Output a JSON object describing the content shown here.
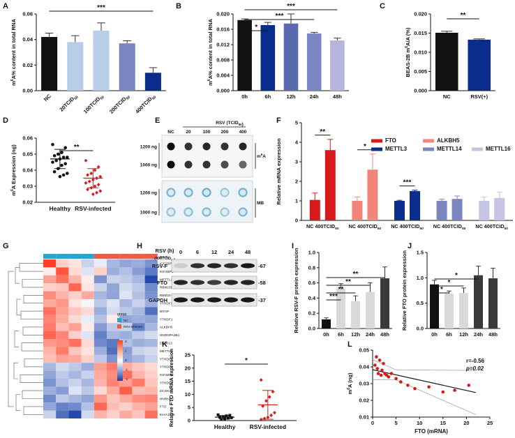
{
  "colors": {
    "black": "#111111",
    "navy": "#0a2c8c",
    "red": "#d7191c",
    "salmon": "#f28579",
    "ltblue": "#b7cde8",
    "slate": "#7a86c0",
    "lavender": "#c6c4e4"
  },
  "panels": [
    {
      "letter": "A",
      "id": "A",
      "type": "bar",
      "ylabel": "m6A% content in total RNA",
      "ylim": [
        0,
        0.06
      ],
      "yticks": [
        "0.00",
        "0.02",
        "0.04",
        "0.06"
      ],
      "categories": [
        "NC",
        "20TCID50",
        "100TCID50",
        "200TCID50",
        "400TCID50"
      ],
      "values": [
        0.042,
        0.038,
        0.047,
        0.037,
        0.014
      ],
      "errors": [
        0.003,
        0.005,
        0.006,
        0.002,
        0.004
      ],
      "colors": [
        "#111111",
        "#b7cde8",
        "#b7cde8",
        "#7a86c0",
        "#0a2c8c"
      ],
      "sig": [
        {
          "from": 0,
          "to": 4,
          "label": "***"
        }
      ]
    },
    {
      "letter": "B",
      "id": "B",
      "type": "bar",
      "ylabel": "m6A% content in total RNA",
      "ylim": [
        0,
        0.02
      ],
      "yticks": [
        "0.000",
        "0.004",
        "0.008",
        "0.012",
        "0.016",
        "0.020"
      ],
      "categories": [
        "0h",
        "6h",
        "12h",
        "24h",
        "48h"
      ],
      "values": [
        0.0184,
        0.0171,
        0.0175,
        0.0149,
        0.0131
      ],
      "errors": [
        0.0003,
        0.0007,
        0.0025,
        0.0003,
        0.0006
      ],
      "colors": [
        "#111111",
        "#0a2c8c",
        "#5b69b0",
        "#7a86c0",
        "#b7b5de"
      ],
      "sig": [
        {
          "from": 0,
          "to": 1,
          "label": "*"
        },
        {
          "from": 0,
          "to": 3,
          "label": "***"
        },
        {
          "from": 0,
          "to": 4,
          "label": "***"
        }
      ]
    },
    {
      "letter": "C",
      "id": "C",
      "type": "bar",
      "ylabel": "BEAS-2B m6A/A (%)",
      "ylim": [
        0,
        0.02
      ],
      "yticks": [
        "0.000",
        "0.005",
        "0.010",
        "0.015",
        "0.020"
      ],
      "categories": [
        "NC",
        "RSV(+)"
      ],
      "values": [
        0.0151,
        0.0133
      ],
      "errors": [
        0.0004,
        0.0002
      ],
      "colors": [
        "#111111",
        "#0a2c8c"
      ],
      "sig": [
        {
          "from": 0,
          "to": 1,
          "label": "**"
        }
      ]
    },
    {
      "letter": "D",
      "id": "D",
      "type": "scatter",
      "ylabel": "m6A Expression (ng)",
      "ylim": [
        0.02,
        0.06
      ],
      "yticks": [
        "0.02",
        "0.03",
        "0.04",
        "0.05",
        "0.06"
      ],
      "categories": [
        "Healthy",
        "RSV-infected"
      ],
      "groups": [
        {
          "values": [
            0.056,
            0.054,
            0.051,
            0.05,
            0.049,
            0.048,
            0.048,
            0.047,
            0.046,
            0.045,
            0.044,
            0.043,
            0.041,
            0.039,
            0.038,
            0.037,
            0.036
          ],
          "mean": 0.047,
          "sd": 0.006,
          "color": "#111111"
        },
        {
          "values": [
            0.046,
            0.042,
            0.04,
            0.038,
            0.037,
            0.036,
            0.035,
            0.034,
            0.033,
            0.032,
            0.031,
            0.03,
            0.029,
            0.028,
            0.027,
            0.026,
            0.025
          ],
          "mean": 0.035,
          "sd": 0.006,
          "color": "#d7191c"
        }
      ],
      "sig": [
        {
          "from": 0,
          "to": 1,
          "label": "**"
        }
      ]
    },
    {
      "letter": "F",
      "id": "F",
      "type": "grouped",
      "ylabel": "Relative mRNA expression",
      "ylim": [
        0,
        5
      ],
      "yticks": [
        "0",
        "1",
        "2",
        "3",
        "4",
        "5"
      ],
      "groups": [
        {
          "label": "NC 400TCID50",
          "values": [
            1.05,
            3.6
          ],
          "errors": [
            0.35,
            0.55
          ],
          "colors": [
            "#d7191c",
            "#d7191c"
          ],
          "sig": "**"
        },
        {
          "label": "NC 400TCID50",
          "values": [
            1.0,
            2.6
          ],
          "errors": [
            0.2,
            0.8
          ],
          "colors": [
            "#f28579",
            "#f28579"
          ],
          "sig": "*"
        },
        {
          "label": "NC 400TCID50",
          "values": [
            1.0,
            1.5
          ],
          "errors": [
            0.03,
            0.05
          ],
          "colors": [
            "#0a2c8c",
            "#0a2c8c"
          ],
          "sig": "***"
        },
        {
          "label": "NC 400TCID50",
          "values": [
            1.0,
            1.1
          ],
          "errors": [
            0.08,
            0.15
          ],
          "colors": [
            "#7a86c0",
            "#7a86c0"
          ],
          "sig": ""
        },
        {
          "label": "NC 400TCID50",
          "values": [
            1.0,
            1.15
          ],
          "errors": [
            0.2,
            0.3
          ],
          "colors": [
            "#c6c4e4",
            "#c6c4e4"
          ],
          "sig": ""
        }
      ],
      "legend": [
        {
          "name": "FTO",
          "color": "#d7191c"
        },
        {
          "name": "ALKBH5",
          "color": "#f28579"
        },
        {
          "name": "METTL3",
          "color": "#0a2c8c"
        },
        {
          "name": "METTL14",
          "color": "#7a86c0"
        },
        {
          "name": "METTL16",
          "color": "#c6c4e4"
        }
      ]
    },
    {
      "letter": "I",
      "id": "I",
      "type": "bar",
      "ylabel": "Relative RSV-F protein expression",
      "ylim": [
        0,
        1.0
      ],
      "yticks": [
        "0.0",
        "0.2",
        "0.4",
        "0.6",
        "0.8",
        "1.0"
      ],
      "categories": [
        "0h",
        "6h",
        "12h",
        "24h",
        "48h"
      ],
      "values": [
        0.12,
        0.53,
        0.36,
        0.48,
        0.66
      ],
      "errors": [
        0.02,
        0.06,
        0.07,
        0.12,
        0.15
      ],
      "colors": [
        "#111111",
        "#d9d9d9",
        "#d9d9d9",
        "#d9d9d9",
        "#3a3a3a"
      ],
      "sig": [
        {
          "from": 0,
          "to": 1,
          "label": "***"
        },
        {
          "from": 0,
          "to": 2,
          "label": "**"
        },
        {
          "from": 0,
          "to": 3,
          "label": "**"
        },
        {
          "from": 0,
          "to": 4,
          "label": "**"
        }
      ]
    },
    {
      "letter": "J",
      "id": "J",
      "type": "bar",
      "ylabel": "Relative FTO protein expression",
      "ylim": [
        0,
        1.5
      ],
      "yticks": [
        "0.0",
        "0.5",
        "1.0",
        "1.5"
      ],
      "categories": [
        "0h",
        "6h",
        "12h",
        "24h",
        "48h"
      ],
      "values": [
        0.87,
        0.69,
        0.7,
        1.05,
        0.99
      ],
      "errors": [
        0.08,
        0.05,
        0.1,
        0.18,
        0.2
      ],
      "colors": [
        "#111111",
        "#d9d9d9",
        "#d9d9d9",
        "#3a3a3a",
        "#3a3a3a"
      ],
      "sig": [
        {
          "from": 0,
          "to": 1,
          "label": "*"
        },
        {
          "from": 0,
          "to": 2,
          "label": "*"
        },
        {
          "from": 0,
          "to": 3,
          "label": "*"
        }
      ]
    },
    {
      "letter": "K",
      "id": "K",
      "type": "scatter",
      "ylabel": "Relative FTO mRNA expression",
      "ylim": [
        0,
        25
      ],
      "yticks": [
        "0",
        "5",
        "10",
        "15",
        "20",
        "25"
      ],
      "categories": [
        "Healthy",
        "RSV-infected"
      ],
      "groups": [
        {
          "values": [
            2.2,
            2.0,
            1.8,
            1.5,
            1.3,
            1.1,
            0.9,
            0.6,
            0.4
          ],
          "mean": 1.3,
          "sd": 0.6,
          "color": "#111111"
        },
        {
          "values": [
            15.5,
            11.0,
            9.0,
            7.5,
            5.5,
            3.0,
            2.0,
            1.2,
            0.8,
            0.4
          ],
          "mean": 6.0,
          "sd": 5.5,
          "color": "#d7191c"
        }
      ],
      "sig": [
        {
          "from": 0,
          "to": 1,
          "label": "*"
        }
      ]
    },
    {
      "letter": "L",
      "id": "L",
      "type": "correlation",
      "xlabel": "FTO (mRNA)",
      "ylabel": "m6A (ng)",
      "xlim": [
        0,
        25
      ],
      "ylim": [
        0.01,
        0.05
      ],
      "xticks": [
        "0",
        "5",
        "10",
        "15",
        "20",
        "25"
      ],
      "yticks": [
        "0.01",
        "0.02",
        "0.03",
        "0.04",
        "0.05"
      ],
      "points": [
        [
          0.5,
          0.041
        ],
        [
          0.8,
          0.046
        ],
        [
          1.0,
          0.039
        ],
        [
          1.2,
          0.036
        ],
        [
          1.5,
          0.044
        ],
        [
          1.8,
          0.035
        ],
        [
          2.0,
          0.038
        ],
        [
          2.3,
          0.042
        ],
        [
          2.6,
          0.036
        ],
        [
          3.0,
          0.035
        ],
        [
          3.4,
          0.034
        ],
        [
          4.0,
          0.036
        ],
        [
          5.0,
          0.033
        ],
        [
          6.0,
          0.031
        ],
        [
          7.5,
          0.029
        ],
        [
          9.0,
          0.027
        ],
        [
          12.0,
          0.028
        ],
        [
          15.0,
          0.025
        ],
        [
          17.5,
          0.026
        ],
        [
          20.5,
          0.029
        ]
      ],
      "stats": {
        "r": "r=-0.56",
        "p": "p=0.02"
      },
      "fit": {
        "slope": -0.00062,
        "intercept": 0.0383
      }
    }
  ],
  "dotblot": {
    "letter": "E",
    "header": "RSV (TCID50)",
    "lanes": [
      "NC",
      "20",
      "100",
      "200",
      "400"
    ],
    "rows": [
      "1200 ng",
      "1000 ng"
    ],
    "m6a_label": "m6A",
    "mb_label": "MB",
    "m6a_intensity": [
      [
        0.95,
        0.8,
        0.85,
        0.8,
        0.85
      ],
      [
        0.95,
        0.8,
        0.8,
        0.7,
        0.6
      ]
    ],
    "mb_intensity": [
      [
        0.5,
        0.55,
        0.6,
        0.3,
        0.55
      ],
      [
        0.35,
        0.4,
        0.45,
        0.3,
        0.5
      ]
    ]
  },
  "heatmap": {
    "letter": "G",
    "genes": [
      "IGF2BP1",
      "IGF2BP3",
      "METTL14",
      "RBM15B",
      "RBM15",
      "YTHDF3",
      "WTAP",
      "YTHDF1",
      "ALKBH5",
      "HNRNPA2B1",
      "ZC3H13",
      "METTL3",
      "YTHDF2",
      "YTHDC2",
      "IGF2BP2",
      "YTHDC1",
      "ZC3HC4",
      "HNRNPC",
      "FTO",
      "KIAA1429"
    ],
    "top_label": "group",
    "legend_title": "group",
    "legend_groups": [
      {
        "name": "NC",
        "color": "#2aa6c9"
      },
      {
        "name": "RSV-infected",
        "color": "#e8604c"
      }
    ],
    "scale_ticks": [
      "2",
      "1",
      "0",
      "-1",
      "-2"
    ],
    "top_gene": "group",
    "matrix": [
      [
        2.0,
        0.5,
        0.3,
        -0.5,
        -0.2,
        -0.8,
        -1.0,
        -0.9,
        -1.2
      ],
      [
        0.2,
        1.8,
        0.4,
        -0.3,
        0.5,
        -0.9,
        -0.7,
        -1.1,
        -1.5
      ],
      [
        1.0,
        1.5,
        0.8,
        0.2,
        -1.2,
        -0.5,
        -0.6,
        -0.8,
        -2.0
      ],
      [
        0.5,
        0.6,
        1.6,
        0.3,
        -0.5,
        -1.0,
        -0.4,
        -0.6,
        -1.3
      ],
      [
        1.2,
        0.8,
        0.5,
        0.9,
        -0.8,
        -1.0,
        -0.3,
        -0.7,
        -1.2
      ],
      [
        0.9,
        1.1,
        0.3,
        -0.1,
        -0.6,
        -0.3,
        -0.8,
        -0.5,
        -0.9
      ],
      [
        1.5,
        1.0,
        0.6,
        0.4,
        -0.9,
        -0.4,
        -0.6,
        -0.8,
        -1.6
      ],
      [
        1.3,
        0.9,
        0.4,
        -0.2,
        -0.7,
        0.2,
        -1.0,
        -0.9,
        -1.0
      ],
      [
        1.4,
        0.7,
        1.0,
        0.2,
        -1.1,
        -0.6,
        -0.5,
        -1.4,
        -0.8
      ],
      [
        1.6,
        1.3,
        0.5,
        -0.3,
        -1.4,
        -0.8,
        -0.9,
        -0.6,
        -0.4
      ],
      [
        1.1,
        1.2,
        1.5,
        0.4,
        -1.3,
        -1.5,
        -0.7,
        -0.9,
        -0.8
      ],
      [
        0.8,
        1.4,
        0.6,
        0.3,
        -0.9,
        -1.6,
        -1.1,
        -0.5,
        -0.4
      ],
      [
        0.7,
        1.0,
        0.9,
        0.5,
        -0.6,
        -1.2,
        -1.0,
        -0.8,
        -0.5
      ],
      [
        -0.8,
        -0.4,
        -0.6,
        -0.9,
        1.0,
        1.4,
        0.9,
        0.6,
        0.4
      ],
      [
        -1.0,
        -0.6,
        -0.8,
        -0.5,
        0.9,
        1.2,
        1.5,
        0.8,
        0.5
      ],
      [
        -1.2,
        -0.7,
        -0.5,
        -0.8,
        0.8,
        1.3,
        1.0,
        1.4,
        0.6
      ],
      [
        -0.9,
        -1.1,
        -0.3,
        -0.6,
        0.4,
        0.9,
        1.7,
        0.7,
        0.8
      ],
      [
        -1.3,
        -0.6,
        -0.8,
        -1.0,
        1.1,
        0.6,
        0.9,
        1.2,
        1.3
      ],
      [
        -1.0,
        -1.4,
        -1.3,
        -0.7,
        1.6,
        0.7,
        0.5,
        0.8,
        1.0
      ],
      [
        -0.5,
        -1.6,
        -2.0,
        -0.4,
        0.8,
        0.5,
        0.9,
        0.6,
        1.5
      ]
    ]
  },
  "western": {
    "letter": "H",
    "header": "RSV (h)",
    "subheader": "(400TCID50)",
    "lanes": [
      "0",
      "6",
      "12",
      "24",
      "48"
    ],
    "bands": [
      {
        "name": "RSV-F",
        "kda": "-67",
        "intensity": [
          0.15,
          0.8,
          0.85,
          0.8,
          0.9
        ]
      },
      {
        "name": "FTO",
        "kda": "-58",
        "intensity": [
          0.85,
          0.8,
          0.75,
          0.85,
          0.85
        ]
      },
      {
        "name": "GAPDH",
        "kda": "-37",
        "intensity": [
          0.9,
          0.9,
          0.9,
          0.9,
          0.9
        ]
      }
    ]
  }
}
